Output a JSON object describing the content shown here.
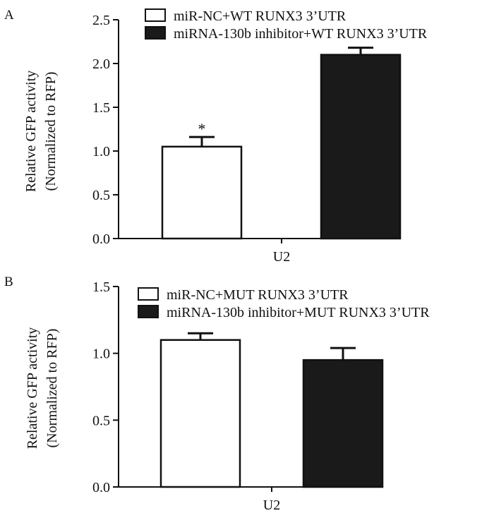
{
  "chart_data": [
    {
      "panel_label": "A",
      "type": "bar",
      "title": "",
      "xlabel": "",
      "ylabel": [
        "Relative GFP activity",
        "(Normalized to RFP)"
      ],
      "categories": [
        "U2"
      ],
      "ylim": [
        0,
        2.5
      ],
      "yticks": [
        0.0,
        0.5,
        1.0,
        1.5,
        2.0,
        2.5
      ],
      "ytick_labels": [
        "0.0",
        "0.5",
        "1.0",
        "1.5",
        "2.0",
        "2.5"
      ],
      "legend_position": "top",
      "series": [
        {
          "name": "miR-NC+WT RUNX3 3’UTR",
          "values": [
            1.05
          ],
          "error": [
            0.11
          ],
          "fill": "#ffffff",
          "annotation": "*"
        },
        {
          "name": "miRNA-130b inhibitor+WT RUNX3 3’UTR",
          "values": [
            2.1
          ],
          "error": [
            0.08
          ],
          "fill": "#1a1a1a",
          "annotation": ""
        }
      ]
    },
    {
      "panel_label": "B",
      "type": "bar",
      "title": "",
      "xlabel": "",
      "ylabel": [
        "Relative GFP activity",
        "(Normalized to RFP)"
      ],
      "categories": [
        "U2"
      ],
      "ylim": [
        0,
        1.5
      ],
      "yticks": [
        0.0,
        0.5,
        1.0,
        1.5
      ],
      "ytick_labels": [
        "0.0",
        "0.5",
        "1.0",
        "1.5"
      ],
      "legend_position": "top",
      "series": [
        {
          "name": "miR-NC+MUT RUNX3 3’UTR",
          "values": [
            1.1
          ],
          "error": [
            0.05
          ],
          "fill": "#ffffff",
          "annotation": ""
        },
        {
          "name": "miRNA-130b inhibitor+MUT RUNX3 3’UTR",
          "values": [
            0.95
          ],
          "error": [
            0.09
          ],
          "fill": "#1a1a1a",
          "annotation": ""
        }
      ]
    }
  ]
}
